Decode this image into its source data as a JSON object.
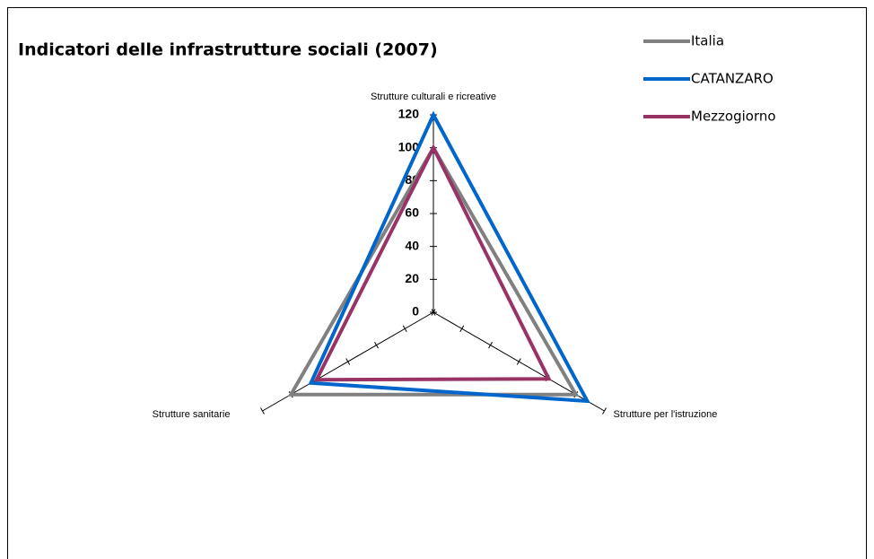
{
  "chart_data": {
    "type": "radar",
    "title": "Indicatori delle infrastrutture sociali (2007)",
    "categories": [
      "Strutture culturali e ricreative",
      "Strutture per l'istruzione",
      "Strutture sanitarie"
    ],
    "series": [
      {
        "name": "Italia",
        "color": "#808080",
        "values": [
          100,
          100,
          100
        ]
      },
      {
        "name": "CATANZARO",
        "color": "#0066cc",
        "values": [
          120,
          108,
          86
        ]
      },
      {
        "name": "Mezzogiorno",
        "color": "#993366",
        "values": [
          100,
          81,
          82
        ]
      }
    ],
    "ylim": [
      0,
      120
    ],
    "yticks": [
      0,
      20,
      40,
      60,
      80,
      100,
      120
    ],
    "legend": "top-right"
  }
}
